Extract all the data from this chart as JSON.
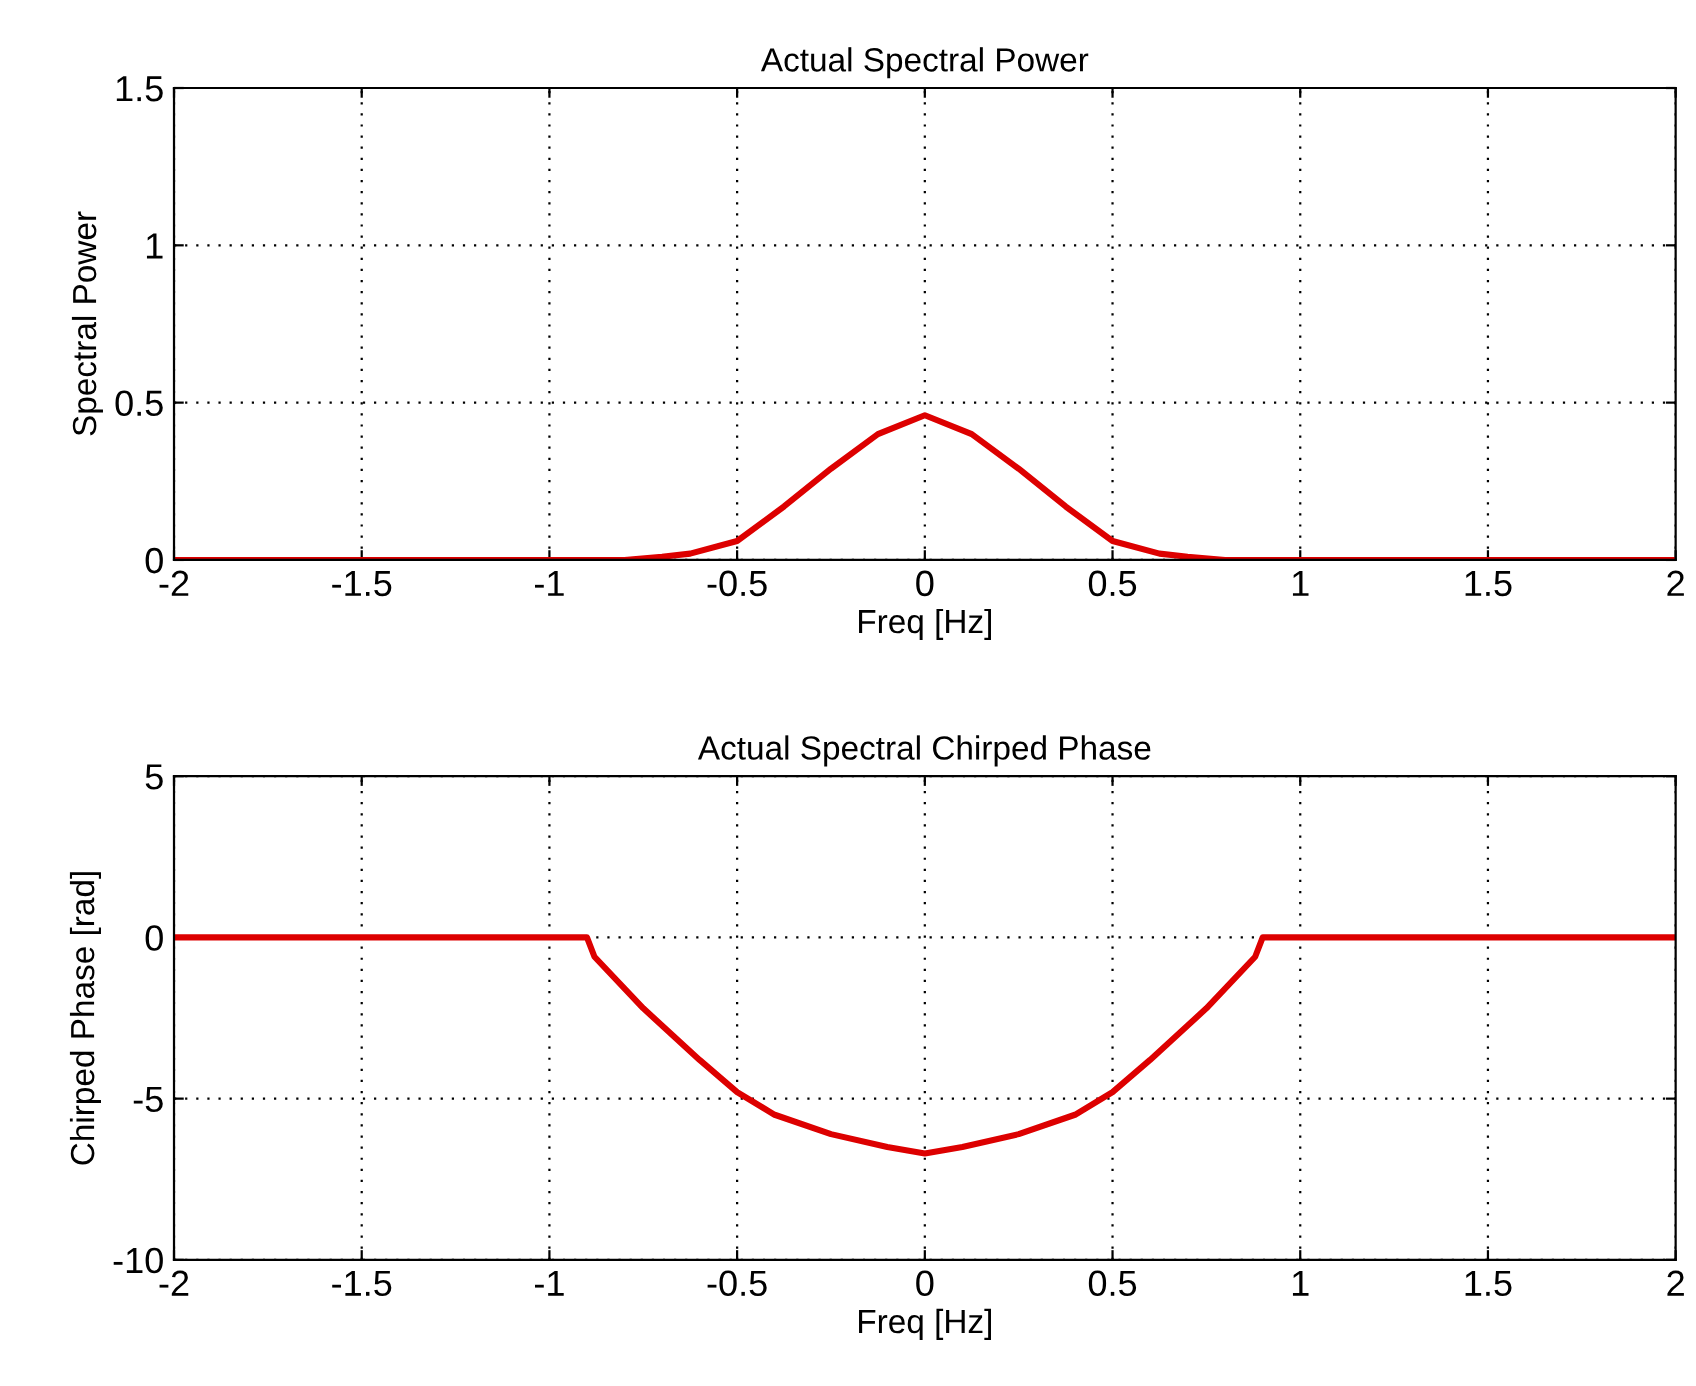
{
  "chart_data": [
    {
      "type": "line",
      "title": "Actual Spectral Power",
      "xlabel": "Freq [Hz]",
      "ylabel": "Spectral Power",
      "xlim": [
        -2,
        2
      ],
      "ylim": [
        0,
        1.5
      ],
      "xticks": [
        -2,
        -1.5,
        -1,
        -0.5,
        0,
        0.5,
        1,
        1.5,
        2
      ],
      "yticks": [
        0,
        0.5,
        1,
        1.5
      ],
      "grid": true,
      "x": [
        -2,
        -0.8,
        -0.7,
        -0.625,
        -0.5,
        -0.375,
        -0.25,
        -0.125,
        0,
        0.125,
        0.25,
        0.375,
        0.5,
        0.625,
        0.7,
        0.8,
        2
      ],
      "series": [
        {
          "color": "#dd0000",
          "values": [
            0,
            0,
            0.01,
            0.02,
            0.06,
            0.17,
            0.29,
            0.4,
            0.46,
            0.4,
            0.29,
            0.17,
            0.06,
            0.02,
            0.01,
            0,
            0
          ]
        }
      ]
    },
    {
      "type": "line",
      "title": "Actual Spectral Chirped Phase",
      "xlabel": "Freq [Hz]",
      "ylabel": "Chirped Phase [rad]",
      "xlim": [
        -2,
        2
      ],
      "ylim": [
        -10,
        5
      ],
      "xticks": [
        -2,
        -1.5,
        -1,
        -0.5,
        0,
        0.5,
        1,
        1.5,
        2
      ],
      "yticks": [
        -10,
        -5,
        0,
        5
      ],
      "grid": true,
      "x": [
        -2,
        -0.9,
        -0.88,
        -0.75,
        -0.6,
        -0.5,
        -0.4,
        -0.25,
        -0.1,
        0,
        0.1,
        0.25,
        0.4,
        0.5,
        0.6,
        0.75,
        0.88,
        0.9,
        2
      ],
      "series": [
        {
          "color": "#dd0000",
          "values": [
            0,
            0,
            -0.6,
            -2.2,
            -3.8,
            -4.8,
            -5.5,
            -6.1,
            -6.5,
            -6.7,
            -6.5,
            -6.1,
            -5.5,
            -4.8,
            -3.8,
            -2.2,
            -0.6,
            0,
            0
          ]
        }
      ]
    }
  ]
}
